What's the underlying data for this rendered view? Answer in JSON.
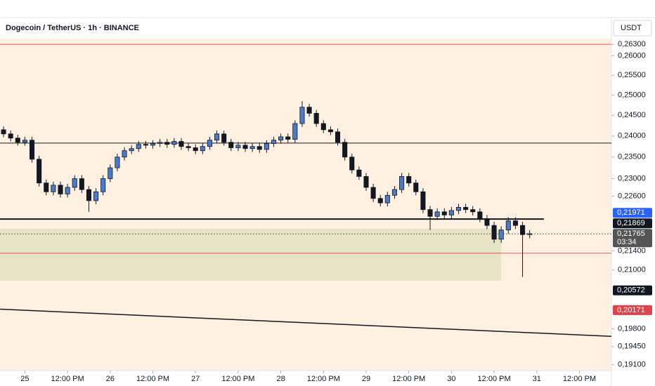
{
  "chart_data": {
    "type": "candlestick",
    "title": "Dogecoin / TetherUS · 1h · BINANCE",
    "currency": "USDT",
    "log_scale": true,
    "up_color": "#4a7bc8",
    "down_color": "#131722",
    "xlim": [
      -7,
      165
    ],
    "ylim": [
      0.2645,
      0.1899
    ],
    "xticks": [
      {
        "value": 0,
        "label": "25"
      },
      {
        "value": 12,
        "label": "12:00 PM"
      },
      {
        "value": 24,
        "label": "26"
      },
      {
        "value": 36,
        "label": "12:00 PM"
      },
      {
        "value": 48,
        "label": "27"
      },
      {
        "value": 60,
        "label": "12:00 PM"
      },
      {
        "value": 72,
        "label": "28"
      },
      {
        "value": 84,
        "label": "12:00 PM"
      },
      {
        "value": 96,
        "label": "29"
      },
      {
        "value": 108,
        "label": "12:00 PM"
      },
      {
        "value": 120,
        "label": "30"
      },
      {
        "value": 132,
        "label": "12:00 PM"
      },
      {
        "value": 144,
        "label": "31"
      },
      {
        "value": 156,
        "label": "12:00 PM"
      }
    ],
    "yticks": [
      {
        "value": 0.263,
        "label": "0,26300"
      },
      {
        "value": 0.26,
        "label": "0,26000"
      },
      {
        "value": 0.255,
        "label": "0,25500"
      },
      {
        "value": 0.25,
        "label": "0,25000"
      },
      {
        "value": 0.245,
        "label": "0,24500"
      },
      {
        "value": 0.24,
        "label": "0,24000"
      },
      {
        "value": 0.235,
        "label": "0,23500"
      },
      {
        "value": 0.23,
        "label": "0,23000"
      },
      {
        "value": 0.226,
        "label": "0,22600"
      },
      {
        "value": 0.214,
        "label": "0,21400"
      },
      {
        "value": 0.21,
        "label": "0,21000"
      },
      {
        "value": 0.198,
        "label": "0,19800"
      },
      {
        "value": 0.1945,
        "label": "0,19450"
      },
      {
        "value": 0.191,
        "label": "0,19100"
      }
    ],
    "x": [
      -6,
      -4,
      -2,
      0,
      2,
      4,
      6,
      8,
      10,
      12,
      14,
      16,
      18,
      20,
      22,
      24,
      26,
      28,
      30,
      32,
      34,
      36,
      38,
      40,
      42,
      44,
      46,
      48,
      50,
      52,
      54,
      56,
      58,
      60,
      62,
      64,
      66,
      68,
      70,
      72,
      74,
      76,
      78,
      80,
      82,
      84,
      86,
      88,
      90,
      92,
      94,
      96,
      98,
      100,
      102,
      104,
      106,
      108,
      110,
      112,
      114,
      116,
      118,
      120,
      122,
      124,
      126,
      128,
      130,
      132,
      134,
      136,
      138,
      140,
      142
    ],
    "open": [
      0.2415,
      0.2405,
      0.2395,
      0.2385,
      0.239,
      0.2345,
      0.229,
      0.227,
      0.2285,
      0.2265,
      0.228,
      0.23,
      0.2275,
      0.225,
      0.227,
      0.23,
      0.2325,
      0.235,
      0.2365,
      0.237,
      0.238,
      0.2378,
      0.2382,
      0.2385,
      0.238,
      0.2387,
      0.2375,
      0.2372,
      0.2365,
      0.2375,
      0.239,
      0.2405,
      0.2385,
      0.2372,
      0.2378,
      0.237,
      0.2375,
      0.2368,
      0.2382,
      0.239,
      0.2398,
      0.2392,
      0.243,
      0.247,
      0.2455,
      0.243,
      0.2415,
      0.241,
      0.2385,
      0.235,
      0.232,
      0.2305,
      0.228,
      0.2255,
      0.2245,
      0.2262,
      0.2275,
      0.2305,
      0.229,
      0.227,
      0.223,
      0.2215,
      0.2225,
      0.2218,
      0.2228,
      0.2235,
      0.223,
      0.2225,
      0.221,
      0.2195,
      0.2165,
      0.2185,
      0.2205,
      0.2195,
      0.2175
    ],
    "high": [
      0.2423,
      0.2413,
      0.2403,
      0.2398,
      0.2398,
      0.2353,
      0.2298,
      0.2293,
      0.2293,
      0.2288,
      0.2308,
      0.2308,
      0.2283,
      0.2278,
      0.2308,
      0.2333,
      0.2358,
      0.2373,
      0.2378,
      0.2388,
      0.2388,
      0.239,
      0.2393,
      0.2393,
      0.2395,
      0.2395,
      0.2383,
      0.238,
      0.2383,
      0.2398,
      0.2413,
      0.2413,
      0.2393,
      0.2386,
      0.2386,
      0.2383,
      0.2383,
      0.239,
      0.2398,
      0.2406,
      0.2406,
      0.2438,
      0.2485,
      0.2478,
      0.2463,
      0.2438,
      0.2423,
      0.2418,
      0.2393,
      0.2358,
      0.2328,
      0.2313,
      0.2288,
      0.2263,
      0.227,
      0.2283,
      0.2313,
      0.2313,
      0.2298,
      0.2278,
      0.2238,
      0.2233,
      0.2233,
      0.2236,
      0.2243,
      0.2243,
      0.2238,
      0.2233,
      0.2218,
      0.2203,
      0.2193,
      0.2213,
      0.2213,
      0.2203,
      0.2185
    ],
    "low": [
      0.2397,
      0.2387,
      0.2377,
      0.2377,
      0.2337,
      0.2282,
      0.2262,
      0.2262,
      0.2257,
      0.2257,
      0.2272,
      0.2267,
      0.2225,
      0.2242,
      0.2262,
      0.2292,
      0.2317,
      0.2342,
      0.2357,
      0.2362,
      0.237,
      0.237,
      0.2374,
      0.2372,
      0.2372,
      0.2367,
      0.2364,
      0.2357,
      0.2357,
      0.2367,
      0.2382,
      0.2377,
      0.2364,
      0.2364,
      0.2362,
      0.2362,
      0.236,
      0.236,
      0.2374,
      0.2382,
      0.2384,
      0.2384,
      0.2422,
      0.2447,
      0.2422,
      0.2407,
      0.2402,
      0.2377,
      0.2342,
      0.2312,
      0.2297,
      0.2272,
      0.2247,
      0.2237,
      0.2237,
      0.2254,
      0.2267,
      0.2282,
      0.2262,
      0.2222,
      0.2185,
      0.2207,
      0.221,
      0.221,
      0.222,
      0.2222,
      0.2217,
      0.2202,
      0.2187,
      0.2157,
      0.2157,
      0.2177,
      0.2187,
      0.2085,
      0.2167
    ],
    "close": [
      0.2405,
      0.2395,
      0.2385,
      0.239,
      0.2345,
      0.229,
      0.227,
      0.2285,
      0.2265,
      0.228,
      0.23,
      0.2275,
      0.225,
      0.227,
      0.23,
      0.2325,
      0.235,
      0.2365,
      0.237,
      0.238,
      0.2378,
      0.2382,
      0.2385,
      0.238,
      0.2387,
      0.2375,
      0.2372,
      0.2365,
      0.2375,
      0.239,
      0.2405,
      0.2385,
      0.2372,
      0.2378,
      0.237,
      0.2375,
      0.2368,
      0.2382,
      0.239,
      0.2398,
      0.2392,
      0.243,
      0.247,
      0.2455,
      0.243,
      0.2415,
      0.241,
      0.2385,
      0.235,
      0.232,
      0.2305,
      0.228,
      0.2255,
      0.2245,
      0.2262,
      0.2275,
      0.2305,
      0.229,
      0.227,
      0.223,
      0.2215,
      0.2225,
      0.2218,
      0.2228,
      0.2235,
      0.223,
      0.2225,
      0.221,
      0.2195,
      0.2165,
      0.2185,
      0.2205,
      0.2195,
      0.2175,
      0.2177
    ],
    "levels": [
      {
        "value": 0.263,
        "color": "#e05a5a",
        "width": 1
      },
      {
        "value": 0.2383,
        "color": "#131722",
        "width": 1
      },
      {
        "value": 0.2209,
        "color": "#131722",
        "width": 2,
        "x_end": 146
      },
      {
        "value": 0.21765,
        "color": "#666666",
        "width": 1,
        "dashed": true
      },
      {
        "value": 0.2135,
        "color": "#e05a5a",
        "width": 1
      }
    ],
    "zone": {
      "from": 0.2188,
      "to": 0.2077,
      "x_end": 134,
      "color": "#e6e4c4"
    },
    "trendline": {
      "x": [
        -7,
        165
      ],
      "values": [
        0.2019,
        0.1965
      ],
      "color": "#131722"
    },
    "price_labels": [
      {
        "value": 0.21971,
        "label": "0,21971",
        "color": "#2962ff"
      },
      {
        "value": 0.21869,
        "label": "0,21869",
        "color": "#131722"
      },
      {
        "value": 0.21765,
        "label": "0,21765",
        "sublabel": "03:34",
        "color": "#555555"
      },
      {
        "value": 0.20572,
        "label": "0,20572",
        "color": "#131722"
      },
      {
        "value": 0.20171,
        "label": "0,20171",
        "color": "#e0424a"
      }
    ]
  }
}
